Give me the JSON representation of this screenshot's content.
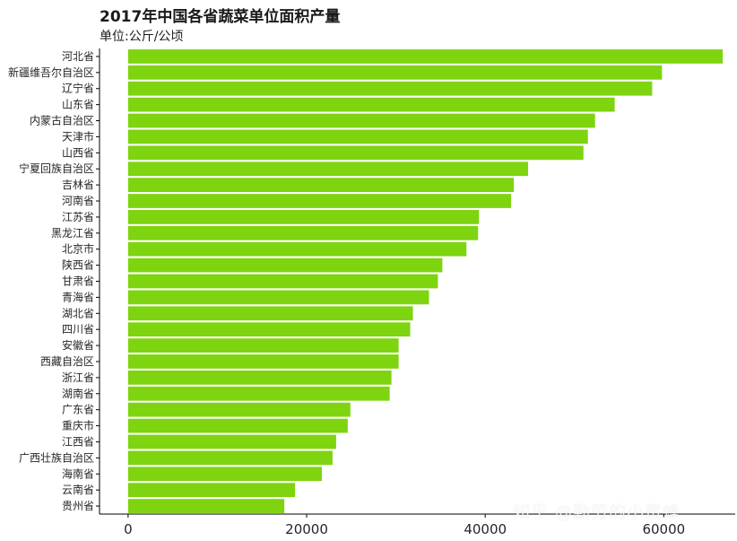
{
  "chart_data": {
    "type": "bar",
    "orientation": "horizontal",
    "title": "2017年中国各省蔬菜单位面积产量",
    "subtitle": "单位:公斤/公顷",
    "xlabel": "",
    "ylabel": "",
    "xlim": [
      -3200,
      68000
    ],
    "x_ticks": [
      0,
      20000,
      40000,
      60000
    ],
    "x_tick_labels": [
      "0",
      "20000",
      "40000",
      "60000"
    ],
    "grid": false,
    "bar_color": "#7ed40f",
    "categories": [
      "河北省",
      "新疆维吾尔自治区",
      "辽宁省",
      "山东省",
      "内蒙古自治区",
      "天津市",
      "山西省",
      "宁夏回族自治区",
      "吉林省",
      "河南省",
      "江苏省",
      "黑龙江省",
      "北京市",
      "陕西省",
      "甘肃省",
      "青海省",
      "湖北省",
      "四川省",
      "安徽省",
      "西藏自治区",
      "浙江省",
      "湖南省",
      "广东省",
      "重庆市",
      "江西省",
      "广西壮族自治区",
      "海南省",
      "云南省",
      "贵州省"
    ],
    "values": [
      66600,
      59800,
      58700,
      54500,
      52300,
      51500,
      51000,
      44800,
      43200,
      42900,
      39300,
      39200,
      37900,
      35200,
      34700,
      33700,
      31900,
      31600,
      30300,
      30300,
      29500,
      29300,
      24900,
      24600,
      23300,
      22900,
      21700,
      18700,
      17500
    ]
  },
  "watermark": "知乎 @勤劳的小蜜蜂"
}
